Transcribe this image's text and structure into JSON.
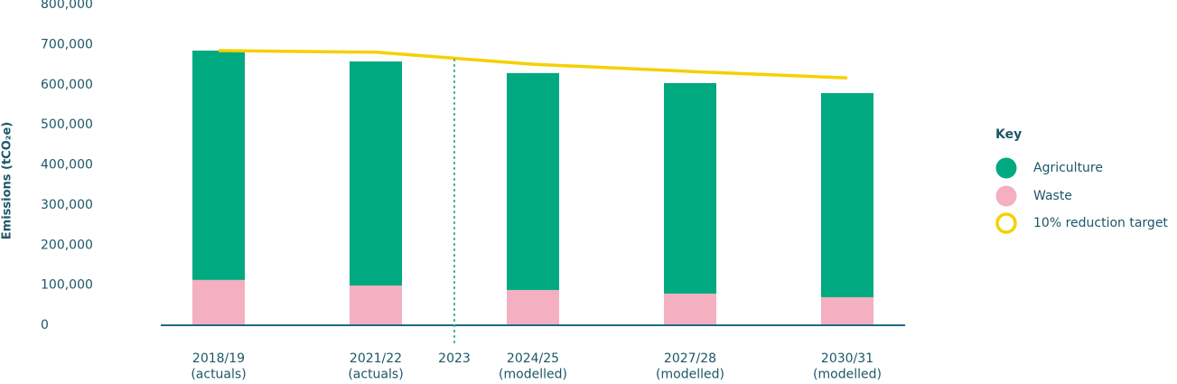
{
  "chart_data": {
    "type": "bar",
    "y_label": "Emissions (tCO₂e)",
    "categories": [
      "2018/19\n(actuals)",
      "2021/22\n(actuals)",
      "2024/25\n(modelled)",
      "2027/28\n(modelled)",
      "2030/31\n(modelled)"
    ],
    "series": [
      {
        "name": "Agriculture",
        "color": "#00a97f",
        "type": "bar",
        "values": [
          572000,
          559000,
          541000,
          525000,
          509000
        ]
      },
      {
        "name": "Waste",
        "color": "#f4afc0",
        "type": "bar",
        "values": [
          113000,
          99000,
          88000,
          79000,
          70000
        ]
      },
      {
        "name": "10% reduction target",
        "color": "#f5d000",
        "type": "line",
        "values": [
          685000,
          681000,
          651000,
          633000,
          617000
        ]
      }
    ],
    "annotation": "2023",
    "ylim": [
      0,
      800000
    ],
    "yticks": [
      {
        "value": 0,
        "label": "0"
      },
      {
        "value": 100000,
        "label": "100,000"
      },
      {
        "value": 200000,
        "label": "200,000"
      },
      {
        "value": 300000,
        "label": "300,000"
      },
      {
        "value": 400000,
        "label": "400,000"
      },
      {
        "value": 500000,
        "label": "500,000"
      },
      {
        "value": 600000,
        "label": "600,000"
      },
      {
        "value": 700000,
        "label": "700,000"
      },
      {
        "value": 800000,
        "label": "800,000"
      }
    ],
    "legend_title": "Key",
    "legend_position": "right"
  }
}
